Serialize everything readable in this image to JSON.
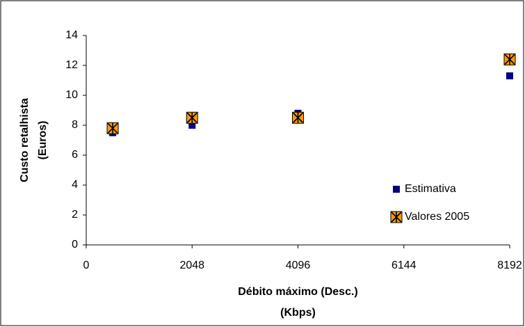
{
  "chart_data": {
    "type": "scatter",
    "xlabel": [
      "Débito máximo (Desc.)",
      "(Kbps)"
    ],
    "ylabel": [
      "Custo retalhista",
      "(Euros)"
    ],
    "xlim": [
      0,
      8192
    ],
    "xticks": [
      0,
      2048,
      4096,
      6144,
      8192
    ],
    "ylim": [
      0,
      14
    ],
    "yticks": [
      0,
      2,
      4,
      6,
      8,
      10,
      12,
      14
    ],
    "grid": false,
    "legend": "lower right",
    "series": [
      {
        "name": "Estimativa",
        "color": "#000080",
        "marker": "square",
        "x": [
          512,
          2048,
          4096,
          8192
        ],
        "values": [
          7.5,
          8.0,
          8.8,
          11.3
        ]
      },
      {
        "name": "Valores 2005",
        "color": "#ff9900",
        "marker": "star-square",
        "x": [
          512,
          2048,
          4096,
          8192
        ],
        "values": [
          7.8,
          8.5,
          8.5,
          12.4
        ]
      }
    ]
  }
}
